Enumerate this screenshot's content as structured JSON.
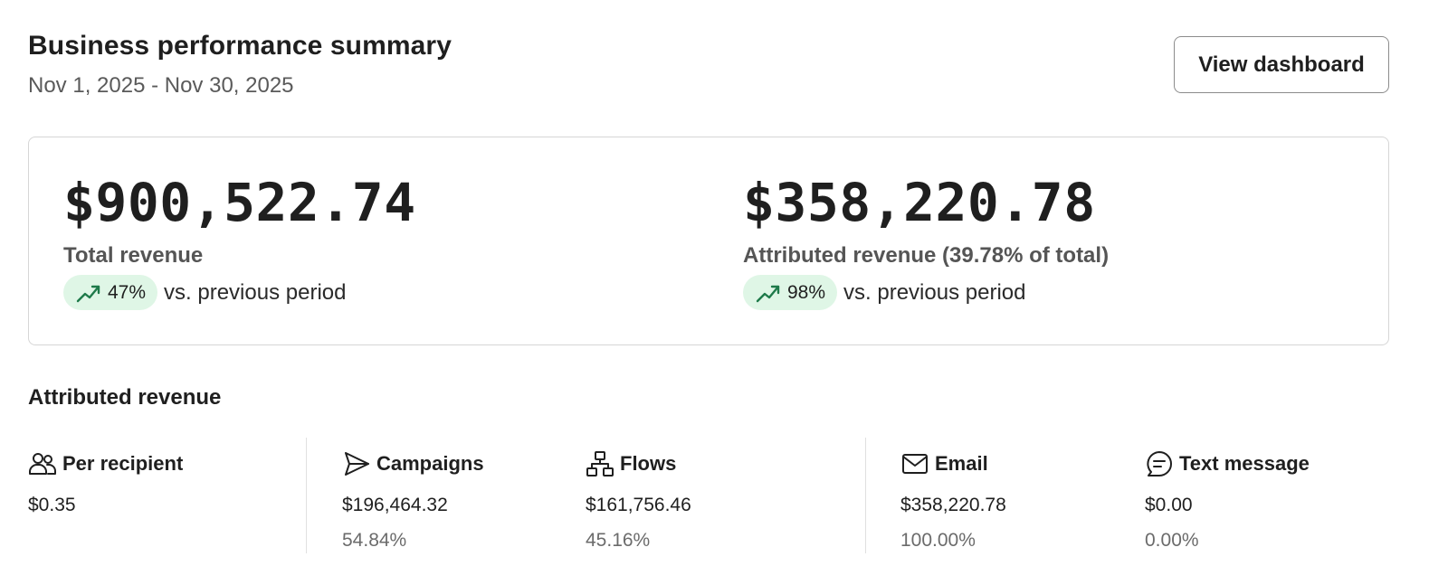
{
  "header": {
    "title": "Business performance summary",
    "date_range": "Nov 1, 2025 - Nov 30, 2025",
    "button_label": "View dashboard"
  },
  "summary": {
    "total": {
      "value": "$900,522.74",
      "label": "Total revenue",
      "change": "47%",
      "change_suffix": "vs. previous period",
      "trend": "up"
    },
    "attributed": {
      "value": "$358,220.78",
      "label": "Attributed revenue (39.78% of total)",
      "change": "98%",
      "change_suffix": "vs. previous period",
      "trend": "up"
    }
  },
  "section_title": "Attributed revenue",
  "columns": [
    {
      "icon": "people-icon",
      "label": "Per recipient",
      "value": "$0.35",
      "percent": ""
    },
    {
      "icon": "send-icon",
      "label": "Campaigns",
      "value": "$196,464.32",
      "percent": "54.84%"
    },
    {
      "icon": "flow-icon",
      "label": "Flows",
      "value": "$161,756.46",
      "percent": "45.16%"
    },
    {
      "icon": "email-icon",
      "label": "Email",
      "value": "$358,220.78",
      "percent": "100.00%"
    },
    {
      "icon": "chat-icon",
      "label": "Text message",
      "value": "$0.00",
      "percent": "0.00%"
    }
  ],
  "colors": {
    "trend_up_bg": "#dff6e6",
    "trend_up_icon": "#1e7a4a",
    "border": "#d6d6d6",
    "text_primary": "#1f1f1f",
    "text_muted": "#6b6b6b"
  }
}
